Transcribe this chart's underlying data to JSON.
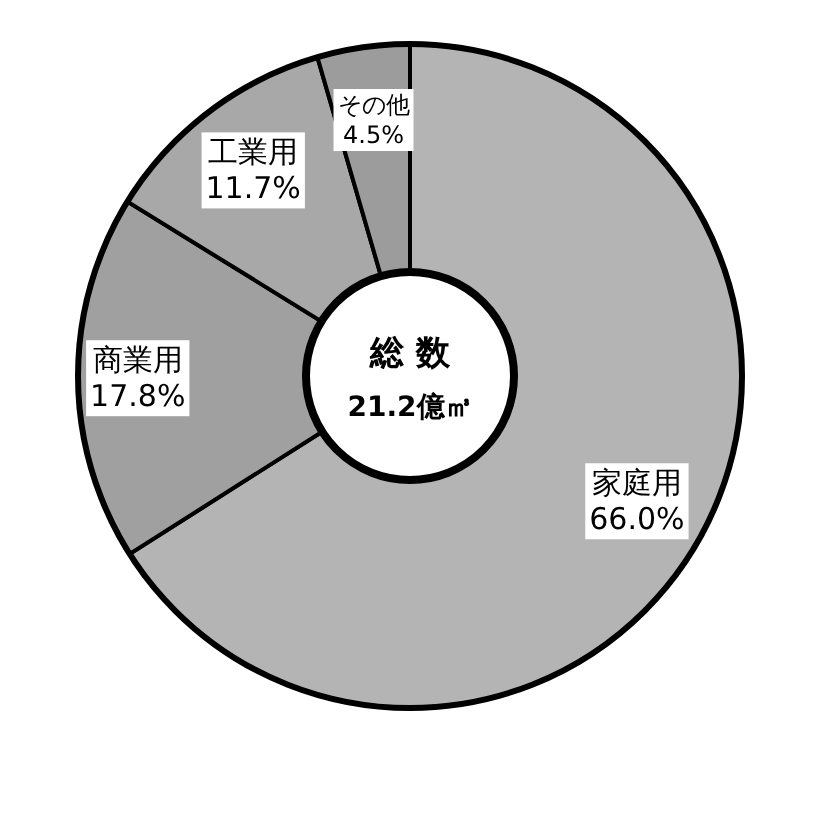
{
  "chart_data": {
    "type": "donut",
    "title": "総 数",
    "subtitle": "21.2億㎥",
    "categories": [
      "家庭用",
      "商業用",
      "工業用",
      "その他"
    ],
    "values": [
      66.0,
      17.8,
      11.7,
      4.5
    ],
    "colors": [
      "#b4b4b4",
      "#a0a0a0",
      "#a8a8a8",
      "#9c9c9c"
    ],
    "value_labels": [
      "66.0%",
      "17.8%",
      "11.7%",
      "4.5%"
    ]
  }
}
